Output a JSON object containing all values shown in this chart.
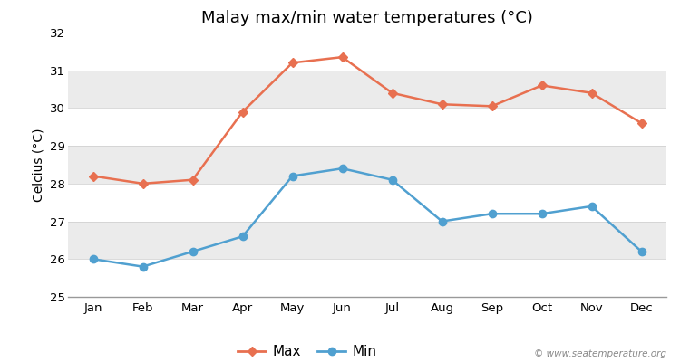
{
  "title": "Malay max/min water temperatures (°C)",
  "xlabel": "",
  "ylabel": "Celcius (°C)",
  "months": [
    "Jan",
    "Feb",
    "Mar",
    "Apr",
    "May",
    "Jun",
    "Jul",
    "Aug",
    "Sep",
    "Oct",
    "Nov",
    "Dec"
  ],
  "max_values": [
    28.2,
    28.0,
    28.1,
    29.9,
    31.2,
    31.35,
    30.4,
    30.1,
    30.05,
    30.6,
    30.4,
    29.6
  ],
  "min_values": [
    26.0,
    25.8,
    26.2,
    26.6,
    28.2,
    28.4,
    28.1,
    27.0,
    27.2,
    27.2,
    27.4,
    26.2
  ],
  "max_color": "#e87050",
  "min_color": "#50a0d0",
  "ylim": [
    25,
    32
  ],
  "yticks": [
    25,
    26,
    27,
    28,
    29,
    30,
    31,
    32
  ],
  "band_colors": [
    "#ffffff",
    "#ebebeb",
    "#ffffff",
    "#ebebeb",
    "#ffffff",
    "#ebebeb",
    "#ffffff"
  ],
  "fig_bg_color": "#ffffff",
  "plot_bg_color": "#ffffff",
  "watermark": "© www.seatemperature.org",
  "title_fontsize": 13,
  "axis_fontsize": 10,
  "tick_fontsize": 9.5,
  "legend_fontsize": 11
}
